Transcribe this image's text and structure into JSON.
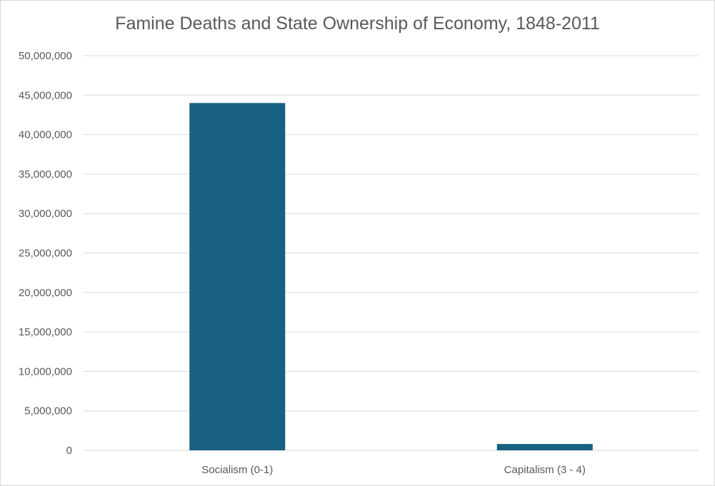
{
  "chart_data": {
    "type": "bar",
    "title": "Famine Deaths and State Ownership of Economy, 1848-2011",
    "xlabel": "",
    "ylabel": "",
    "categories": [
      "Socialism (0-1)",
      "Capitalism (3 - 4)"
    ],
    "values": [
      44000000,
      800000
    ],
    "ylim": [
      0,
      50000000
    ],
    "yticks": [
      0,
      5000000,
      10000000,
      15000000,
      20000000,
      25000000,
      30000000,
      35000000,
      40000000,
      45000000,
      50000000
    ],
    "ytick_labels": [
      "0",
      "5,000,000",
      "10,000,000",
      "15,000,000",
      "20,000,000",
      "25,000,000",
      "30,000,000",
      "35,000,000",
      "40,000,000",
      "45,000,000",
      "50,000,000"
    ],
    "grid": true,
    "legend": "none",
    "bar_color": "#17607f"
  }
}
